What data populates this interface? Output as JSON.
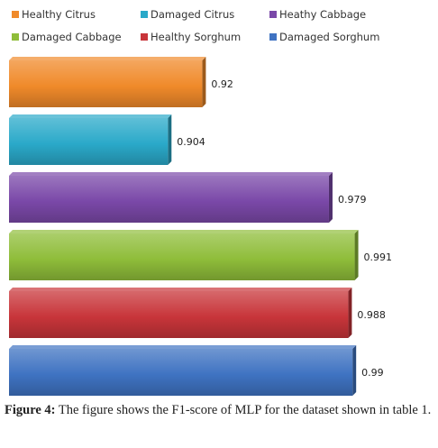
{
  "chart_data": {
    "type": "bar",
    "orientation": "horizontal",
    "categories": [
      "Healthy Citrus",
      "Damaged Citrus",
      "Heathy Cabbage",
      "Damaged Cabbage",
      "Healthy Sorghum",
      "Damaged Sorghum"
    ],
    "values": [
      0.92,
      0.904,
      0.979,
      0.991,
      0.988,
      0.99
    ],
    "value_labels": [
      "0.92",
      "0.904",
      "0.979",
      "0.991",
      "0.988",
      "0.99"
    ],
    "colors": [
      "#f08a2a",
      "#2aa9c9",
      "#7a48a8",
      "#8fbd3a",
      "#c8353a",
      "#3f73c2"
    ],
    "xlim": [
      0.83,
      1.0
    ],
    "legend_position": "top",
    "grid": false
  },
  "caption": {
    "label": "Figure 4:",
    "text": " The figure shows the F1-score of MLP for the dataset shown in table 1."
  }
}
